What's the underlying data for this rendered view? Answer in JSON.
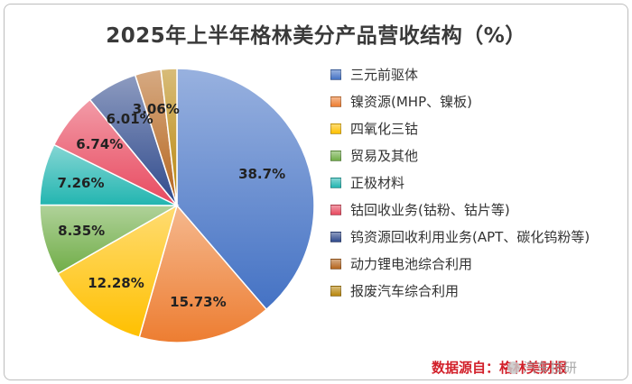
{
  "chart_data": {
    "type": "pie",
    "title": "2025年上半年格林美分产品营收结构（%）",
    "categories": [
      "三元前驱体",
      "镍资源(MHP、镍板)",
      "四氧化三钴",
      "贸易及其他",
      "正极材料",
      "钴回收业务(钴粉、钴片等)",
      "钨资源回收利用业务(APT、碳化钨粉等)",
      "动力锂电池综合利用",
      "报废汽车综合利用"
    ],
    "values": [
      38.7,
      15.73,
      12.28,
      8.35,
      7.26,
      6.74,
      6.01,
      3.06,
      1.87
    ],
    "data_labels": [
      "38.7%",
      "15.73%",
      "12.28%",
      "8.35%",
      "7.26%",
      "6.74%",
      "6.01%",
      "3.06%",
      ""
    ],
    "colors": [
      "#4472c4",
      "#ed7d31",
      "#ffc000",
      "#70ad47",
      "#22b5b0",
      "#e8495f",
      "#2f4a8c",
      "#b5651d",
      "#b8860b"
    ],
    "legend_position": "right"
  },
  "footer": {
    "source": "数据源自：格林美财报",
    "watermark": "汽车技研"
  }
}
